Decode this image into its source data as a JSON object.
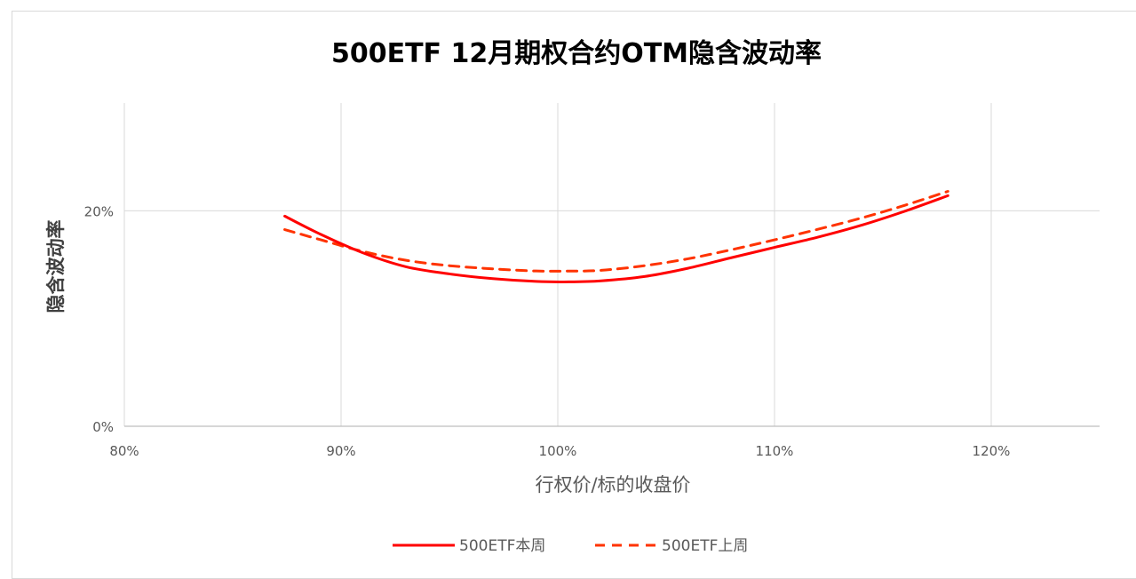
{
  "chart_data": {
    "type": "line",
    "title": "500ETF 12月期权合约OTM隐含波动率",
    "xlabel": "行权价/标的收盘价",
    "ylabel": "隐含波动率",
    "xlim": [
      0.8,
      1.25
    ],
    "ylim": [
      0,
      0.3
    ],
    "x_ticks": [
      0.8,
      0.9,
      1.0,
      1.1,
      1.2
    ],
    "x_tick_labels": [
      "80%",
      "90%",
      "100%",
      "110%",
      "120%"
    ],
    "y_ticks": [
      0,
      0.2
    ],
    "y_tick_labels": [
      "0%",
      "20%"
    ],
    "grid": "vertical and horizontal major gridlines",
    "legend_position": "bottom",
    "series": [
      {
        "name": "500ETF本周",
        "color": "#ff0000",
        "dash": "solid",
        "x": [
          0.874,
          0.89,
          0.91,
          0.93,
          0.95,
          0.97,
          0.99,
          1.005,
          1.02,
          1.04,
          1.06,
          1.08,
          1.1,
          1.12,
          1.14,
          1.16,
          1.18
        ],
        "y": [
          0.195,
          0.1787,
          0.161,
          0.148,
          0.1414,
          0.137,
          0.1344,
          0.134,
          0.135,
          0.139,
          0.1466,
          0.1564,
          0.166,
          0.1755,
          0.1865,
          0.1995,
          0.214
        ]
      },
      {
        "name": "500ETF上周",
        "color": "#ff3300",
        "dash": "dashed",
        "x": [
          0.874,
          0.89,
          0.91,
          0.93,
          0.95,
          0.97,
          0.99,
          1.005,
          1.02,
          1.04,
          1.06,
          1.08,
          1.1,
          1.12,
          1.14,
          1.16,
          1.18
        ],
        "y": [
          0.1825,
          0.1734,
          0.1623,
          0.154,
          0.149,
          0.1461,
          0.1441,
          0.144,
          0.1447,
          0.149,
          0.1554,
          0.1638,
          0.173,
          0.1828,
          0.1932,
          0.205,
          0.218
        ]
      }
    ]
  }
}
